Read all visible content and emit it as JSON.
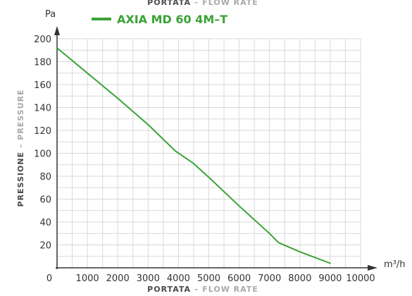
{
  "chart_data": {
    "type": "line",
    "top_label": {
      "bold": "PORTATA",
      "sep": " – ",
      "light": "FLOW RATE"
    },
    "legend": {
      "label": "AXIA MD 60 4M–T",
      "color": "#3aa336"
    },
    "y_unit": "Pa",
    "x_unit": "m³/h",
    "ylabel": {
      "bold": "PRESSIONE",
      "sep": " – ",
      "light": "PRESSURE"
    },
    "xlabel": {
      "bold": "PORTATA",
      "sep": " – ",
      "light": "FLOW RATE"
    },
    "xlim": [
      0,
      10000
    ],
    "ylim": [
      0,
      200
    ],
    "x_ticks": [
      "0",
      "1000",
      "2000",
      "3000",
      "4000",
      "5000",
      "6000",
      "7000",
      "8000",
      "9000",
      "10000"
    ],
    "y_ticks": [
      "20",
      "40",
      "60",
      "80",
      "100",
      "120",
      "140",
      "160",
      "180",
      "200"
    ],
    "grid": true,
    "series": [
      {
        "name": "AXIA MD 60 4M–T",
        "color": "#3aa336",
        "x": [
          0,
          1000,
          2000,
          3000,
          3900,
          4500,
          5000,
          6000,
          7000,
          7300,
          8000,
          8500,
          9000
        ],
        "y": [
          192,
          170,
          148,
          125,
          102,
          91,
          79,
          54,
          30,
          22,
          14,
          9,
          4
        ]
      }
    ]
  }
}
